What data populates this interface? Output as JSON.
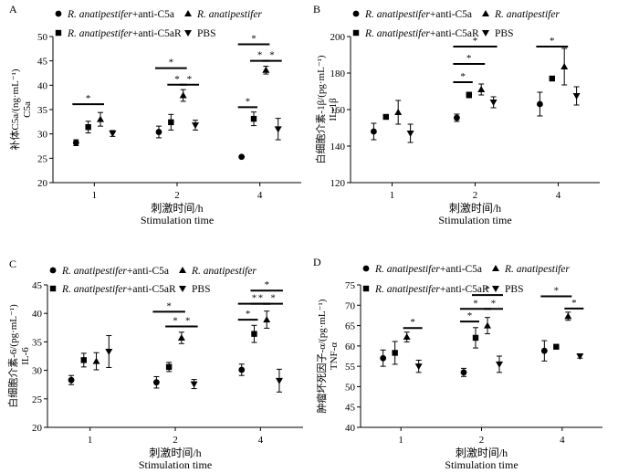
{
  "figure": {
    "group_labels": [
      "R. anatipestifer+anti-C5a",
      "R. anatipestifer",
      "R. anatipestifer+anti-C5aR",
      "PBS"
    ],
    "xlabel_cn": "刺激时间/h",
    "xlabel_en": "Stimulation time"
  },
  "chart_data": [
    {
      "type": "scatter",
      "panel": "A",
      "title": "",
      "ylabel_cn": "补体C5a/(ng·mL⁻¹)",
      "ylabel_en": "C5a",
      "xlabel": "刺激时间/h Stimulation time",
      "categories": [
        "1",
        "2",
        "4"
      ],
      "ylim": [
        20,
        50
      ],
      "yticks": [
        20,
        25,
        30,
        35,
        40,
        45,
        50
      ],
      "series": [
        {
          "name": "R. anatipestifer+anti-C5a",
          "marker": "circle",
          "values": [
            28.2,
            30.4,
            25.3
          ],
          "errors": [
            0.6,
            1.2,
            0
          ]
        },
        {
          "name": "R. anatipestifer+anti-C5aR",
          "marker": "square",
          "values": [
            31.4,
            32.4,
            33.1
          ],
          "errors": [
            1.2,
            1.6,
            1.4
          ]
        },
        {
          "name": "R. anatipestifer",
          "marker": "triangle-up",
          "values": [
            33.0,
            37.9,
            43.1
          ],
          "errors": [
            1.4,
            1.2,
            0.8
          ]
        },
        {
          "name": "PBS",
          "marker": "triangle-down",
          "values": [
            30.1,
            31.8,
            31.0
          ],
          "errors": [
            0.6,
            1.0,
            2.2
          ]
        }
      ],
      "significance": [
        {
          "group": 0,
          "from": 0,
          "to": 2,
          "level": 36.1,
          "label": "*"
        },
        {
          "group": 1,
          "from": 0,
          "to": 2,
          "level": 43.5,
          "label": "*"
        },
        {
          "group": 1,
          "from": 1,
          "to": 2,
          "level": 40.1,
          "label": "*"
        },
        {
          "group": 1,
          "from": 2,
          "to": 3,
          "level": 40.1,
          "label": "*"
        },
        {
          "group": 2,
          "from": 0,
          "to": 1,
          "level": 35.5,
          "label": "*"
        },
        {
          "group": 2,
          "from": 0,
          "to": 2,
          "level": 48.4,
          "label": "*"
        },
        {
          "group": 2,
          "from": 1,
          "to": 2,
          "level": 45.0,
          "label": "*"
        },
        {
          "group": 2,
          "from": 2,
          "to": 3,
          "level": 45.0,
          "label": "*"
        }
      ]
    },
    {
      "type": "scatter",
      "panel": "B",
      "title": "",
      "ylabel_cn": "白细胞介素-1β/(pg·mL⁻¹)",
      "ylabel_en": "IL-1β",
      "xlabel": "刺激时间/h Stimulation time",
      "categories": [
        "1",
        "2",
        "4"
      ],
      "ylim": [
        120,
        200
      ],
      "yticks": [
        120,
        140,
        160,
        180,
        200
      ],
      "series": [
        {
          "name": "R. anatipestifer+anti-C5a",
          "marker": "circle",
          "values": [
            148.0,
            155.5,
            163.0
          ],
          "errors": [
            4.5,
            2.0,
            6.5
          ]
        },
        {
          "name": "R. anatipestifer+anti-C5aR",
          "marker": "square",
          "values": [
            156.0,
            168.0,
            177.0
          ],
          "errors": [
            0.5,
            1.5,
            0.5
          ]
        },
        {
          "name": "R. anatipestifer",
          "marker": "triangle-up",
          "values": [
            158.5,
            171.0,
            183.5
          ],
          "errors": [
            6.5,
            3.0,
            10.0
          ]
        },
        {
          "name": "PBS",
          "marker": "triangle-down",
          "values": [
            147.0,
            164.0,
            167.5
          ],
          "errors": [
            5.0,
            3.0,
            5.0
          ]
        }
      ],
      "significance": [
        {
          "group": 1,
          "from": 0,
          "to": 1,
          "level": 175.0,
          "label": "*"
        },
        {
          "group": 1,
          "from": 0,
          "to": 2,
          "level": 185.0,
          "label": "*"
        },
        {
          "group": 1,
          "from": 0,
          "to": 3,
          "level": 194.5,
          "label": "*"
        },
        {
          "group": 2,
          "from": 0,
          "to": 2,
          "level": 194.5,
          "label": "*"
        }
      ]
    },
    {
      "type": "scatter",
      "panel": "C",
      "title": "",
      "ylabel_cn": "白细胞介素-6/(pg·mL⁻¹)",
      "ylabel_en": "IL-6",
      "xlabel": "刺激时间/h Stimulation time",
      "categories": [
        "1",
        "2",
        "4"
      ],
      "ylim": [
        20,
        45
      ],
      "yticks": [
        20,
        25,
        30,
        35,
        40,
        45
      ],
      "series": [
        {
          "name": "R. anatipestifer+anti-C5a",
          "marker": "circle",
          "values": [
            28.3,
            27.9,
            30.1
          ],
          "errors": [
            0.8,
            1.0,
            1.0
          ]
        },
        {
          "name": "R. anatipestifer+anti-C5aR",
          "marker": "square",
          "values": [
            31.8,
            30.6,
            36.4
          ],
          "errors": [
            1.2,
            0.8,
            1.5
          ]
        },
        {
          "name": "R. anatipestifer",
          "marker": "triangle-up",
          "values": [
            31.6,
            35.7,
            38.9
          ],
          "errors": [
            1.5,
            1.0,
            1.5
          ]
        },
        {
          "name": "PBS",
          "marker": "triangle-down",
          "values": [
            33.3,
            27.6,
            28.2
          ],
          "errors": [
            2.8,
            0.8,
            2.0
          ]
        }
      ],
      "significance": [
        {
          "group": 1,
          "from": 0,
          "to": 2,
          "level": 40.3,
          "label": "*"
        },
        {
          "group": 1,
          "from": 1,
          "to": 2,
          "level": 37.7,
          "label": "*"
        },
        {
          "group": 1,
          "from": 2,
          "to": 3,
          "level": 37.7,
          "label": "*"
        },
        {
          "group": 2,
          "from": 0,
          "to": 1,
          "level": 38.9,
          "label": "*"
        },
        {
          "group": 2,
          "from": 0,
          "to": 2,
          "level": 41.7,
          "label": "*"
        },
        {
          "group": 2,
          "from": 1,
          "to": 2,
          "level": 41.7,
          "label": "*"
        },
        {
          "group": 2,
          "from": 2,
          "to": 3,
          "level": 41.7,
          "label": "*"
        },
        {
          "group": 2,
          "from": 1,
          "to": 3,
          "level": 44.0,
          "label": "*"
        }
      ]
    },
    {
      "type": "scatter",
      "panel": "D",
      "title": "",
      "ylabel_cn": "肿瘤坏死因子-α/(pg·mL⁻¹)",
      "ylabel_en": "TNF-α",
      "xlabel": "刺激时间/h Stimulation time",
      "categories": [
        "1",
        "2",
        "4"
      ],
      "ylim": [
        40,
        75
      ],
      "yticks": [
        40,
        45,
        50,
        55,
        60,
        65,
        70,
        75
      ],
      "series": [
        {
          "name": "R. anatipestifer+anti-C5a",
          "marker": "circle",
          "values": [
            57.0,
            53.5,
            58.8
          ],
          "errors": [
            2.0,
            1.0,
            2.5
          ]
        },
        {
          "name": "R. anatipestifer+anti-C5aR",
          "marker": "square",
          "values": [
            58.3,
            62.0,
            59.8
          ],
          "errors": [
            2.8,
            2.5,
            0.5
          ]
        },
        {
          "name": "R. anatipestifer",
          "marker": "triangle-up",
          "values": [
            62.2,
            65.0,
            67.3
          ],
          "errors": [
            1.2,
            2.0,
            1.0
          ]
        },
        {
          "name": "PBS",
          "marker": "triangle-down",
          "values": [
            55.0,
            55.5,
            57.5
          ],
          "errors": [
            1.5,
            2.0,
            0.5
          ]
        }
      ],
      "significance": [
        {
          "group": 0,
          "from": 2,
          "to": 3,
          "level": 64.4,
          "label": "*"
        },
        {
          "group": 1,
          "from": 0,
          "to": 1,
          "level": 66.0,
          "label": "*"
        },
        {
          "group": 1,
          "from": 0,
          "to": 2,
          "level": 69.1,
          "label": "*"
        },
        {
          "group": 1,
          "from": 2,
          "to": 3,
          "level": 69.1,
          "label": "*"
        },
        {
          "group": 1,
          "from": 1,
          "to": 3,
          "level": 72.5,
          "label": "*"
        },
        {
          "group": 2,
          "from": 0,
          "to": 2,
          "level": 72.2,
          "label": "*"
        },
        {
          "group": 2,
          "from": 2,
          "to": 3,
          "level": 69.2,
          "label": "*"
        }
      ]
    }
  ]
}
